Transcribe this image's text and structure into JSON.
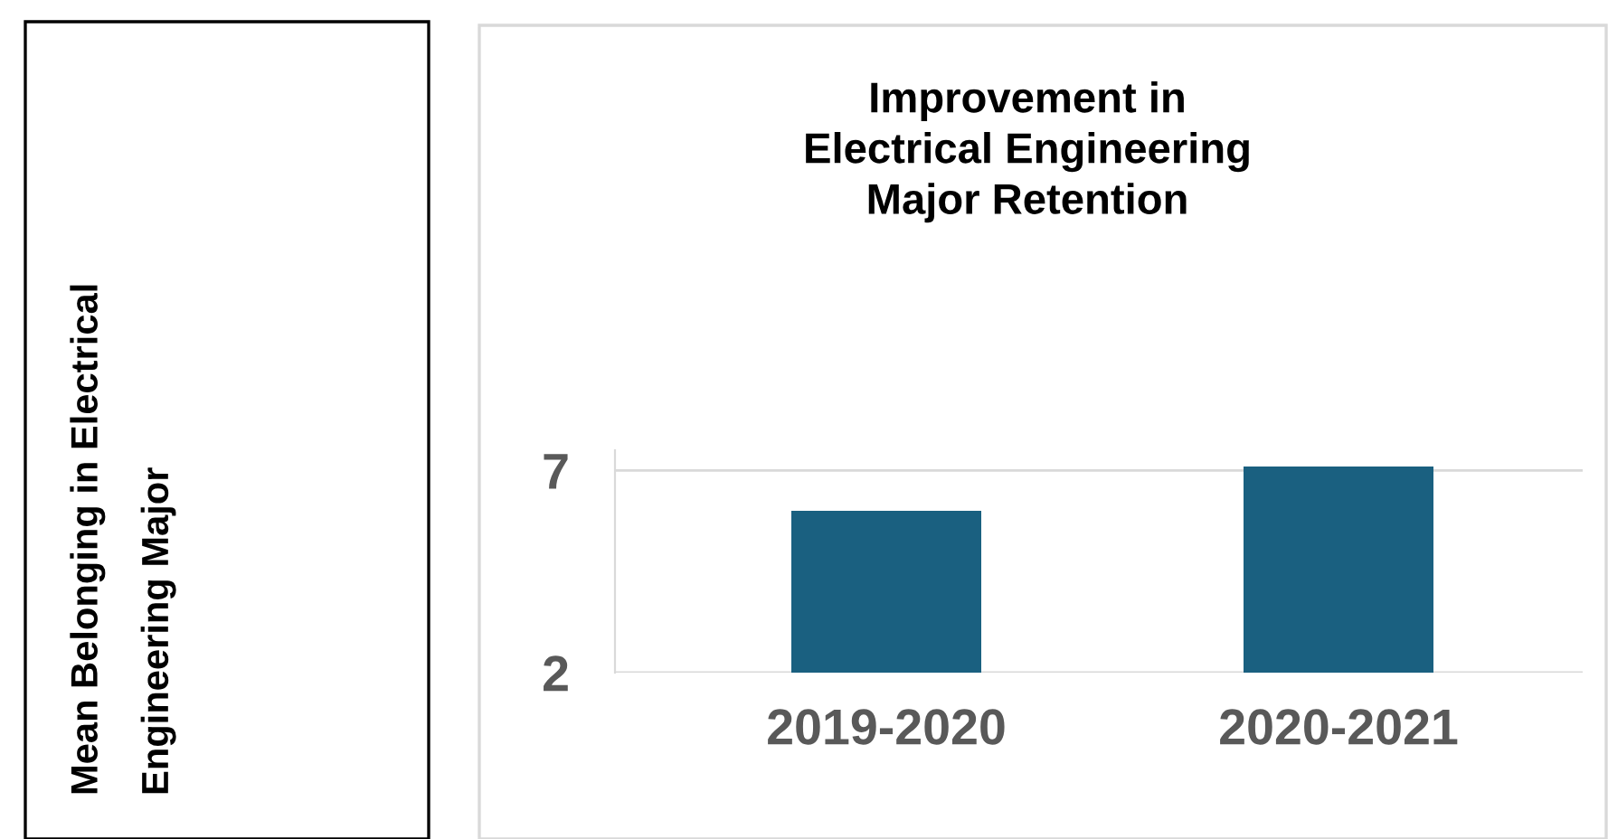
{
  "chart_data": {
    "type": "bar",
    "title": "Improvement in\nElectrical Engineering\nMajor Retention",
    "annotations": [
      "Mean Belonging in Electrical\nEngineering Major"
    ],
    "categories": [
      "2019-2020",
      "2020-2021"
    ],
    "series": [
      {
        "color": "#1a6080",
        "values": [
          6.0,
          7.1
        ]
      }
    ],
    "ylim": [
      2,
      7.5
    ],
    "yticks": [
      2,
      7
    ],
    "grid": "y",
    "legend": false
  }
}
